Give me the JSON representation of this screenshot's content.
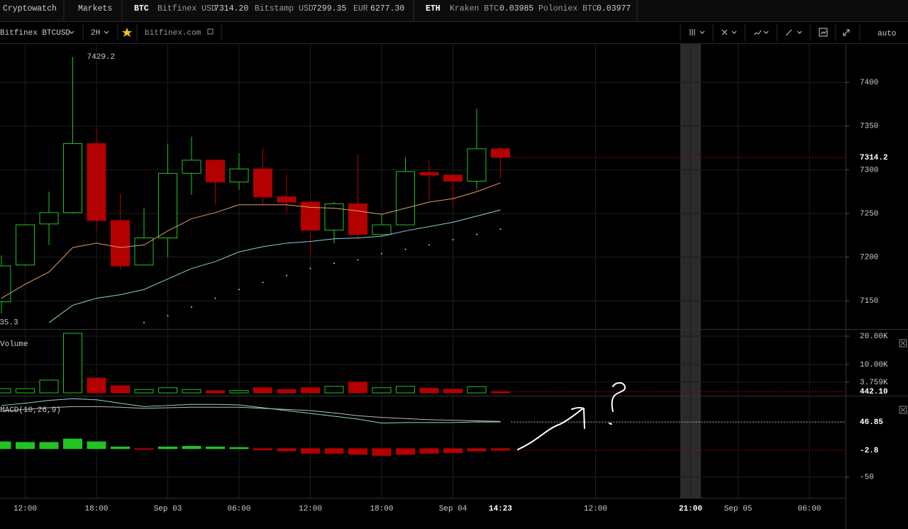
{
  "header": {
    "tabs": [
      "Cryptowatch",
      "Markets"
    ],
    "groups": [
      {
        "label": "BTC",
        "quotes": [
          {
            "exchange": "Bitfinex USD",
            "price": "7314.20"
          },
          {
            "exchange": "Bitstamp USD",
            "price": "7299.35"
          },
          {
            "exchange": "EUR",
            "price": "6277.30"
          }
        ]
      },
      {
        "label": "ETH",
        "quotes": [
          {
            "exchange": "Kraken BTC",
            "price": "0.03985"
          },
          {
            "exchange": "Poloniex BTC",
            "price": "0.03977"
          }
        ]
      }
    ]
  },
  "toolbar": {
    "pair": "Bitfinex BTCUSD",
    "interval": "2H",
    "source": "bitfinex.com",
    "scale": "auto"
  },
  "chart_data": {
    "type": "candlestick",
    "categories": [
      null,
      "12:00",
      null,
      null,
      "18:00",
      null,
      null,
      "Sep 03",
      null,
      null,
      "06:00",
      null,
      null,
      "12:00",
      null,
      null,
      "18:00",
      null,
      null,
      "Sep 04",
      null,
      null,
      null,
      null,
      null,
      "12:00",
      null,
      null,
      null,
      "21:00",
      null,
      "Sep 05",
      null,
      null,
      "06:00"
    ],
    "crosshair_label": "14:23",
    "up_color": "#22c322",
    "down_color": "#b30000",
    "open": [
      7149,
      7191,
      7238,
      7251,
      7330,
      7242,
      7191,
      7222,
      7296,
      7311,
      7286,
      7301,
      7269,
      7263,
      7231,
      7261,
      7226,
      7237,
      7297,
      7294,
      7287,
      7324,
      null,
      null,
      null,
      null,
      null,
      null,
      null,
      null,
      null,
      null,
      null,
      null,
      null
    ],
    "high": [
      7202,
      7238,
      7275,
      7429.2,
      7348,
      7273,
      7256,
      7330,
      7338,
      7311,
      7319,
      7325,
      7294,
      7267,
      7263,
      7317,
      7249,
      7314,
      7311,
      7294,
      7370,
      7326,
      null,
      null,
      null,
      null,
      null,
      null,
      null,
      null,
      null,
      null,
      null,
      null,
      null
    ],
    "low": [
      7135.3,
      7190,
      7214,
      7250,
      7230,
      7186,
      7190,
      7200,
      7271,
      7260,
      7277,
      7259,
      7251,
      7202,
      7216,
      7221,
      7224,
      7237,
      7264,
      7258,
      7277,
      7290,
      null,
      null,
      null,
      null,
      null,
      null,
      null,
      null,
      null,
      null,
      null,
      null,
      null
    ],
    "close": [
      7190,
      7237,
      7251,
      7330,
      7242,
      7190,
      7222,
      7296,
      7311,
      7286,
      7301,
      7269,
      7263,
      7231,
      7261,
      7226,
      7237,
      7298,
      7294,
      7287,
      7324,
      7314.2,
      null,
      null,
      null,
      null,
      null,
      null,
      null,
      null,
      null,
      null,
      null,
      null,
      null
    ],
    "lines": [
      {
        "color": "#e0a064",
        "values": [
          7153,
          7169,
          7183,
          7211,
          7216,
          7211,
          7214,
          7230,
          7244,
          7251,
          7260,
          7260,
          7260,
          7257,
          7256,
          7253,
          7249,
          7256,
          7263,
          7267,
          7275,
          7285,
          null,
          null,
          null,
          null,
          null,
          null,
          null,
          null,
          null,
          null,
          null,
          null,
          null
        ]
      },
      {
        "color": "#84d2dc",
        "values": [
          null,
          null,
          7125,
          7145,
          7153,
          7157,
          7163,
          7175,
          7187,
          7195,
          7206,
          7212,
          7216,
          7218,
          7221,
          7222,
          7224,
          7230,
          7235,
          7240,
          7247,
          7254,
          null,
          null,
          null,
          null,
          null,
          null,
          null,
          null,
          null,
          null,
          null,
          null,
          null
        ]
      }
    ],
    "sar": {
      "color": "#cccccc",
      "values": [
        null,
        null,
        null,
        null,
        null,
        null,
        7125,
        7133,
        7143,
        7153,
        7163,
        7171,
        7179,
        7187,
        7193,
        7197,
        7204,
        7209,
        7214,
        7220,
        7226,
        7232,
        null,
        null,
        null,
        null,
        null,
        null,
        null,
        null,
        null,
        null,
        null,
        null,
        null
      ]
    },
    "ylim": [
      7121,
      7444
    ],
    "yticks": [
      7150,
      7200,
      7250,
      7300,
      7350,
      7400
    ],
    "grid": true,
    "volume": {
      "label": "Volume",
      "values": [
        1500,
        1500,
        4500,
        21000,
        5200,
        2500,
        1200,
        1800,
        1200,
        800,
        800,
        1800,
        1200,
        1800,
        2300,
        3800,
        1800,
        2300,
        1600,
        1300,
        2200,
        442.1,
        null,
        null,
        null,
        null,
        null,
        null,
        null,
        null,
        null,
        null,
        null,
        null,
        null
      ],
      "value_labels": [
        null,
        null,
        null,
        null,
        null,
        null,
        null,
        null,
        null,
        null,
        null,
        null,
        null,
        null,
        null,
        null,
        null,
        null,
        null,
        null,
        null,
        "442.10",
        null,
        null,
        null,
        null,
        null,
        null,
        null,
        null,
        null,
        null,
        null,
        null,
        null
      ],
      "ylim": [
        0,
        21000
      ],
      "yticks": [
        {
          "value": 20000,
          "label": "20.00K"
        },
        {
          "value": 10000,
          "label": "10.00K"
        },
        {
          "value": 3759,
          "label": "3.759K"
        }
      ]
    },
    "macd": {
      "label": "MACD(10,26,9)",
      "histogram": [
        12,
        11,
        11,
        17,
        12,
        3,
        -1,
        3,
        4,
        3,
        2,
        -2,
        -4,
        -8,
        -8,
        -10,
        -12,
        -10,
        -8,
        -7,
        -4,
        -2.8,
        null,
        null,
        null,
        null,
        null,
        null,
        null,
        null,
        null,
        null,
        null,
        null,
        null
      ],
      "macd": [
        76,
        80,
        85,
        88,
        86,
        80,
        74,
        76,
        78,
        78,
        77,
        72,
        67,
        62,
        57,
        52,
        45,
        46,
        46,
        46,
        47,
        46.85,
        null,
        null,
        null,
        null,
        null,
        null,
        null,
        null,
        null,
        null,
        null,
        null,
        null
      ],
      "signal": [
        66,
        69,
        72,
        74,
        74,
        73,
        71,
        72,
        73,
        73,
        73,
        71,
        69,
        67,
        63,
        58,
        55,
        53,
        51,
        50,
        49,
        48,
        null,
        null,
        null,
        null,
        null,
        null,
        null,
        null,
        null,
        null,
        null,
        null,
        null
      ],
      "macd_color": "#8fd3dc",
      "signal_color": "#bbbbbb",
      "ylim": [
        -84,
        87
      ],
      "yticks": [
        -50
      ]
    }
  }
}
